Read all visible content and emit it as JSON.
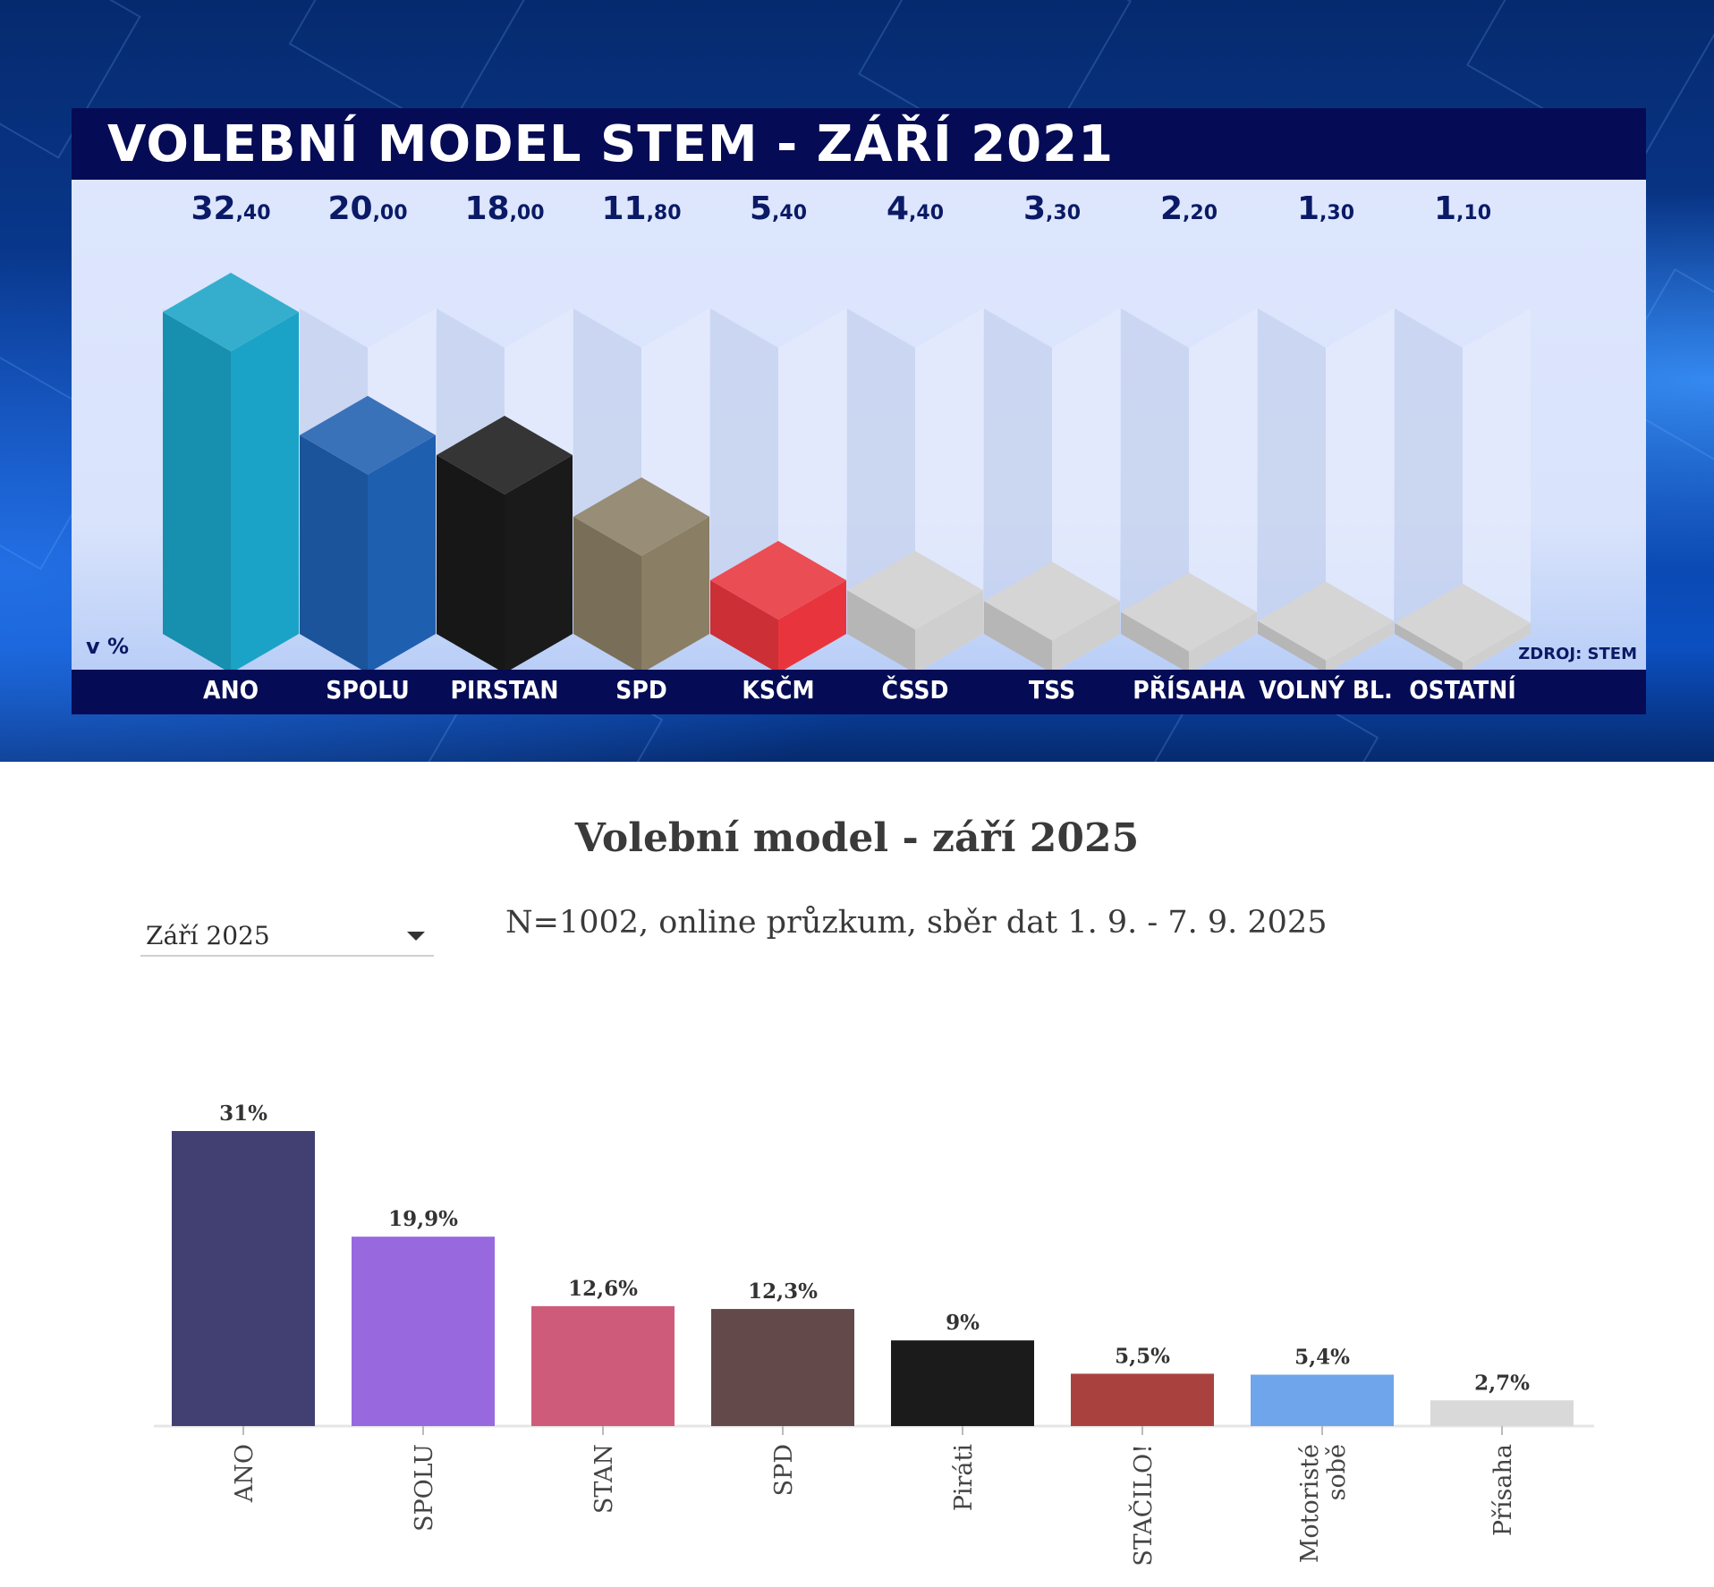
{
  "chart_data": [
    {
      "type": "bar",
      "title": "VOLEBNÍ MODEL STEM - ZÁŘÍ 2021",
      "unit_label": "v %",
      "source": "ZDROJ: STEM",
      "categories": [
        "ANO",
        "SPOLU",
        "PIRSTAN",
        "SPD",
        "KSČM",
        "ČSSD",
        "TSS",
        "PŘÍSAHA",
        "VOLNÝ BL.",
        "OSTATNÍ"
      ],
      "values": [
        32.4,
        20.0,
        18.0,
        11.8,
        5.4,
        4.4,
        3.3,
        2.2,
        1.3,
        1.1
      ],
      "value_labels": [
        {
          "int": "32",
          "dec": ",40"
        },
        {
          "int": "20",
          "dec": ",00"
        },
        {
          "int": "18",
          "dec": ",00"
        },
        {
          "int": "11",
          "dec": ",80"
        },
        {
          "int": "5",
          "dec": ",40"
        },
        {
          "int": "4",
          "dec": ",40"
        },
        {
          "int": "3",
          "dec": ",30"
        },
        {
          "int": "2",
          "dec": ",20"
        },
        {
          "int": "1",
          "dec": ",30"
        },
        {
          "int": "1",
          "dec": ",10"
        }
      ],
      "colors": [
        "#1aa3c6",
        "#1f5fb0",
        "#1a1a1a",
        "#8a7e64",
        "#e8353d",
        "#cfcfcf",
        "#cfcfcf",
        "#cfcfcf",
        "#cfcfcf",
        "#cfcfcf"
      ],
      "ylim": [
        0,
        36
      ]
    },
    {
      "type": "bar",
      "title": "Volební model - září 2025",
      "subtitle": "N=1002, online průzkum, sběr dat 1. 9. - 7. 9. 2025",
      "categories": [
        "ANO",
        "SPOLU",
        "STAN",
        "SPD",
        "Piráti",
        "STAČILO!",
        "Motoristé sobě",
        "Přísaha"
      ],
      "category_lines": [
        [
          "ANO"
        ],
        [
          "SPOLU"
        ],
        [
          "STAN"
        ],
        [
          "SPD"
        ],
        [
          "Piráti"
        ],
        [
          "STAČILO!"
        ],
        [
          "Motoristé",
          "sobě"
        ],
        [
          "Přísaha"
        ]
      ],
      "values": [
        31,
        19.9,
        12.6,
        12.3,
        9,
        5.5,
        5.4,
        2.7
      ],
      "value_labels": [
        "31%",
        "19,9%",
        "12,6%",
        "12,3%",
        "9%",
        "5,5%",
        "5,4%",
        "2,7%"
      ],
      "colors": [
        "#424072",
        "#9868df",
        "#cf5b7a",
        "#634949",
        "#1b1b1b",
        "#a9423f",
        "#6fa5eb",
        "#d9d9d9"
      ],
      "ylim": [
        0,
        31
      ]
    }
  ],
  "selector": {
    "value": "Září 2025"
  }
}
